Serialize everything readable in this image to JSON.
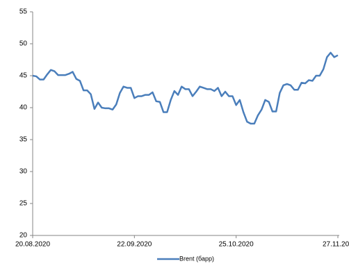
{
  "chart_data": {
    "type": "line",
    "categories": [
      "20.08.2020",
      null,
      null,
      null,
      null,
      null,
      null,
      null,
      null,
      null,
      null,
      null,
      null,
      null,
      null,
      null,
      null,
      null,
      null,
      null,
      null,
      null,
      null,
      null,
      null,
      null,
      null,
      null,
      "22.09.2020",
      null,
      null,
      null,
      null,
      null,
      null,
      null,
      null,
      null,
      null,
      null,
      null,
      null,
      null,
      null,
      null,
      null,
      null,
      null,
      null,
      null,
      null,
      null,
      null,
      null,
      null,
      null,
      "25.10.2020",
      null,
      null,
      null,
      null,
      null,
      null,
      null,
      null,
      null,
      null,
      null,
      null,
      null,
      null,
      null,
      null,
      null,
      null,
      null,
      null,
      null,
      null,
      null,
      null,
      null,
      null,
      null,
      "27.11.20"
    ],
    "series": [
      {
        "name": "Brent (барр)",
        "color": "#4a7ebb",
        "values": [
          45,
          44.9,
          44.4,
          44.4,
          45.2,
          45.9,
          45.7,
          45.1,
          45.1,
          45.1,
          45.3,
          45.6,
          44.5,
          44.2,
          42.7,
          42.7,
          42.1,
          39.8,
          40.8,
          40.0,
          39.9,
          39.9,
          39.7,
          40.5,
          42.3,
          43.3,
          43.1,
          43.1,
          41.5,
          41.8,
          41.8,
          42.0,
          42.0,
          42.4,
          41.0,
          40.9,
          39.3,
          39.3,
          41.2,
          42.6,
          42.0,
          43.3,
          42.9,
          42.9,
          41.8,
          42.5,
          43.3,
          43.1,
          42.9,
          42.9,
          42.6,
          43.1,
          41.8,
          42.5,
          41.8,
          41.8,
          40.4,
          41.2,
          39.3,
          37.8,
          37.5,
          37.5,
          38.8,
          39.7,
          41.2,
          40.9,
          39.4,
          39.4,
          42.3,
          43.5,
          43.7,
          43.5,
          42.8,
          42.8,
          43.9,
          43.8,
          44.3,
          44.2,
          45.0,
          45.0,
          46.0,
          47.9,
          48.6,
          47.9,
          48.2
        ]
      }
    ],
    "ylim": [
      20,
      55
    ],
    "yticks": [
      20,
      25,
      30,
      35,
      40,
      45,
      50,
      55
    ],
    "grid": false,
    "legend": "bottom"
  }
}
